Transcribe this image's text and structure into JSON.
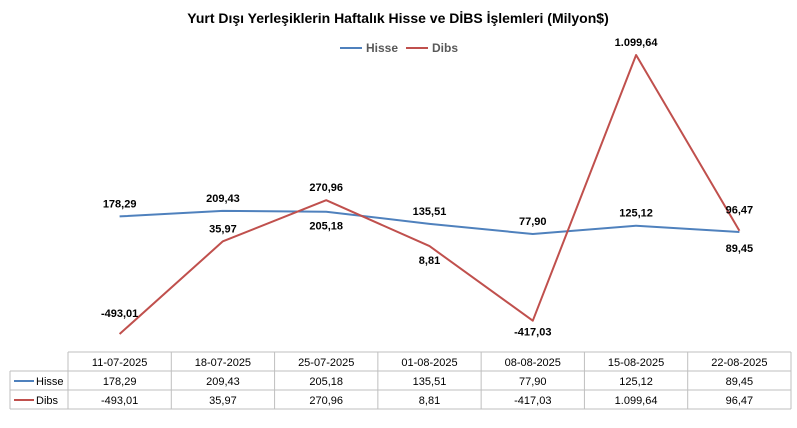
{
  "chart_data": {
    "type": "line",
    "title": "Yurt Dışı Yerleşiklerin Haftalık Hisse ve DİBS İşlemleri (Milyon$)",
    "categories": [
      "11-07-2025",
      "18-07-2025",
      "25-07-2025",
      "01-08-2025",
      "08-08-2025",
      "15-08-2025",
      "22-08-2025"
    ],
    "series": [
      {
        "name": "Hisse",
        "color": "#4f81bd",
        "values": [
          178.29,
          209.43,
          205.18,
          135.51,
          77.9,
          125.12,
          89.45
        ],
        "labels": [
          "178,29",
          "209,43",
          "205,18",
          "135,51",
          "77,90",
          "125,12",
          "89,45"
        ]
      },
      {
        "name": "Dibs",
        "color": "#c0504d",
        "values": [
          -493.01,
          35.97,
          270.96,
          8.81,
          -417.03,
          1099.64,
          96.47
        ],
        "labels": [
          "-493,01",
          "35,97",
          "270,96",
          "8,81",
          "-417,03",
          "1.099,64",
          "96,47"
        ]
      }
    ],
    "legend": "top",
    "data_table": true,
    "grid": false
  }
}
